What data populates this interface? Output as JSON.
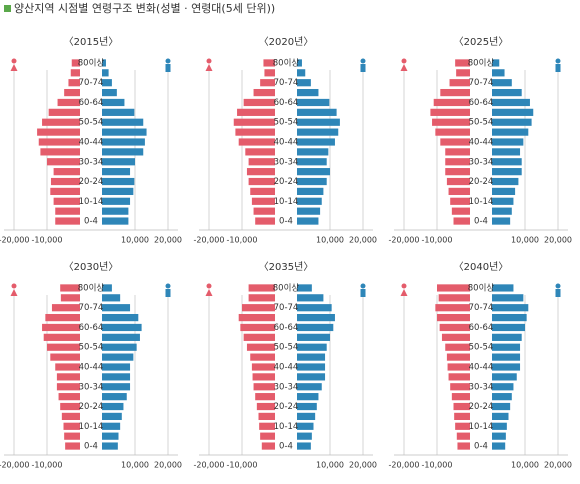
{
  "title": "양산지역 시점별 연령구조 변화(성별 · 연령대(5세 단위))",
  "chart_data": [
    {
      "type": "pyramid",
      "title": "〈2015년〉",
      "categories": [
        "80이상",
        null,
        "70-74",
        null,
        "60-64",
        null,
        "50-54",
        null,
        "40-44",
        null,
        "30-34",
        null,
        "20-24",
        null,
        "10-14",
        null,
        "0-4"
      ],
      "series": [
        {
          "color": "#e45c6b",
          "values": [
            -2500,
            -2800,
            -3500,
            -4800,
            -6800,
            -9500,
            -11500,
            -13000,
            -12500,
            -12000,
            -10000,
            -8000,
            -8800,
            -9000,
            -8000,
            -7500,
            -7500
          ]
        },
        {
          "color": "#2e86b8",
          "values": [
            1200,
            2000,
            3000,
            4500,
            6800,
            9800,
            12500,
            13500,
            13000,
            12500,
            10000,
            8500,
            9800,
            9500,
            8500,
            8000,
            8000
          ]
        }
      ],
      "xlim": [
        -20000,
        20000
      ],
      "xticks": [
        {
          "value": -20000,
          "label": "-20,000"
        },
        {
          "value": -10000,
          "label": "-10,000"
        },
        {
          "value": 10000,
          "label": "10,000"
        },
        {
          "value": 20000,
          "label": "20,000"
        }
      ]
    },
    {
      "type": "pyramid",
      "title": "〈2020년〉",
      "categories": [
        "80이상",
        null,
        "70-74",
        null,
        "60-64",
        null,
        "50-54",
        null,
        "40-44",
        null,
        "30-34",
        null,
        "20-24",
        null,
        "10-14",
        null,
        "0-4"
      ],
      "series": [
        {
          "color": "#e45c6b",
          "values": [
            -3500,
            -3200,
            -4500,
            -6500,
            -9500,
            -11500,
            -12500,
            -12000,
            -11000,
            -9000,
            -8000,
            -8500,
            -8000,
            -7500,
            -7000,
            -6500,
            -6000
          ]
        },
        {
          "color": "#2e86b8",
          "values": [
            1500,
            2500,
            4200,
            6500,
            9800,
            12000,
            13000,
            12500,
            11500,
            9500,
            9000,
            10000,
            9000,
            8000,
            7500,
            7000,
            6500
          ]
        }
      ],
      "xlim": [
        -20000,
        20000
      ],
      "xticks": [
        {
          "value": -20000,
          "label": "-20,000"
        },
        {
          "value": -10000,
          "label": "-10,000"
        },
        {
          "value": 10000,
          "label": "10,000"
        },
        {
          "value": 20000,
          "label": "20,000"
        }
      ]
    },
    {
      "type": "pyramid",
      "title": "〈2025년〉",
      "categories": [
        "80이상",
        null,
        "70-74",
        null,
        "60-64",
        null,
        "50-54",
        null,
        "40-44",
        null,
        "30-34",
        null,
        "20-24",
        null,
        "10-14",
        null,
        "0-4"
      ],
      "series": [
        {
          "color": "#e45c6b",
          "values": [
            -4500,
            -4200,
            -6200,
            -9000,
            -11000,
            -12000,
            -11500,
            -10500,
            -9000,
            -7500,
            -7500,
            -7500,
            -7000,
            -6500,
            -6000,
            -5500,
            -5000
          ]
        },
        {
          "color": "#2e86b8",
          "values": [
            2200,
            3800,
            6000,
            9000,
            11500,
            12500,
            12000,
            11000,
            9500,
            8500,
            9000,
            9000,
            8000,
            7000,
            6500,
            6000,
            5500
          ]
        }
      ],
      "xlim": [
        -20000,
        20000
      ],
      "xticks": [
        {
          "value": -20000,
          "label": "-20,000"
        },
        {
          "value": -10000,
          "label": "-10,000"
        },
        {
          "value": 10000,
          "label": "10,000"
        },
        {
          "value": 20000,
          "label": "20,000"
        }
      ]
    },
    {
      "type": "pyramid",
      "title": "〈2030년〉",
      "categories": [
        "80이상",
        null,
        "70-74",
        null,
        "60-64",
        null,
        "50-54",
        null,
        "40-44",
        null,
        "30-34",
        null,
        "20-24",
        null,
        "10-14",
        null,
        "0-4"
      ],
      "series": [
        {
          "color": "#e45c6b",
          "values": [
            -6000,
            -5800,
            -8500,
            -10500,
            -11500,
            -11000,
            -10000,
            -9000,
            -7500,
            -7000,
            -7000,
            -6500,
            -6000,
            -5500,
            -5000,
            -4800,
            -4500
          ]
        },
        {
          "color": "#2e86b8",
          "values": [
            3000,
            5500,
            8500,
            11000,
            12000,
            11500,
            10500,
            9500,
            8500,
            8500,
            8500,
            7500,
            6500,
            6000,
            5500,
            5000,
            4800
          ]
        }
      ],
      "xlim": [
        -20000,
        20000
      ],
      "xticks": [
        {
          "value": -20000,
          "label": "-20,000"
        },
        {
          "value": -10000,
          "label": "-10,000"
        },
        {
          "value": 10000,
          "label": "10,000"
        },
        {
          "value": 20000,
          "label": "20,000"
        }
      ]
    },
    {
      "type": "pyramid",
      "title": "〈2035년〉",
      "categories": [
        "80이상",
        null,
        "70-74",
        null,
        "60-64",
        null,
        "50-54",
        null,
        "40-44",
        null,
        "30-34",
        null,
        "20-24",
        null,
        "10-14",
        null,
        "0-4"
      ],
      "series": [
        {
          "color": "#e45c6b",
          "values": [
            -8000,
            -8000,
            -10000,
            -11000,
            -10500,
            -9500,
            -8500,
            -7500,
            -7000,
            -6800,
            -6500,
            -6000,
            -5500,
            -5000,
            -4800,
            -4500,
            -4000
          ]
        },
        {
          "color": "#2e86b8",
          "values": [
            4500,
            8000,
            10500,
            11500,
            11000,
            10000,
            9000,
            8500,
            8500,
            8500,
            7500,
            6500,
            6000,
            5500,
            5000,
            4500,
            4200
          ]
        }
      ],
      "xlim": [
        -20000,
        20000
      ],
      "xticks": [
        {
          "value": -20000,
          "label": "-20,000"
        },
        {
          "value": -10000,
          "label": "-10,000"
        },
        {
          "value": 10000,
          "label": "10,000"
        },
        {
          "value": 20000,
          "label": "20,000"
        }
      ]
    },
    {
      "type": "pyramid",
      "title": "〈2040년〉",
      "categories": [
        "80이상",
        null,
        "70-74",
        null,
        "60-64",
        null,
        "50-54",
        null,
        "40-44",
        null,
        "30-34",
        null,
        "20-24",
        null,
        "10-14",
        null,
        "0-4"
      ],
      "series": [
        {
          "color": "#e45c6b",
          "values": [
            -10000,
            -9500,
            -10500,
            -10000,
            -9200,
            -8500,
            -7500,
            -7000,
            -6800,
            -6500,
            -6000,
            -5500,
            -5000,
            -4800,
            -4500,
            -4000,
            -3800
          ]
        },
        {
          "color": "#2e86b8",
          "values": [
            6500,
            9500,
            11000,
            10500,
            10000,
            9000,
            8500,
            8500,
            8500,
            7500,
            6500,
            6000,
            5500,
            5000,
            4500,
            4200,
            4000
          ]
        }
      ],
      "xlim": [
        -20000,
        20000
      ],
      "xticks": [
        {
          "value": -20000,
          "label": "-20,000"
        },
        {
          "value": -10000,
          "label": "-10,000"
        },
        {
          "value": 10000,
          "label": "10,000"
        },
        {
          "value": 20000,
          "label": "20,000"
        }
      ]
    }
  ]
}
